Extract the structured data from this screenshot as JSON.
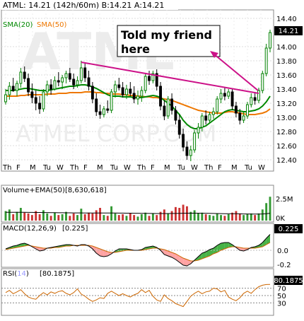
{
  "header": {
    "symbol_line": "ATML: 14.21 (142h/60m)  B:14.21  A:14.21",
    "sma20_label": "SMA(20)",
    "sma50_label": "SMA(50)",
    "last_price_badge": "14.21"
  },
  "watermark": {
    "big": "ATML",
    "corp": "ATMEL CORP.COM"
  },
  "annotation": {
    "line1": "Told my friend",
    "line2": "here"
  },
  "colors": {
    "bullish": "#008000",
    "bearish": "#000000",
    "sma20": "#008800",
    "sma50": "#ee7700",
    "trendline": "#cc1188",
    "volume_up": "#339933",
    "volume_down": "#cc3333",
    "macd_line": "#000000",
    "macd_signal": "#cc6600",
    "rsi_line": "#cc6600",
    "macd_hist_pos": "#33aa33",
    "macd_hist_neg": "#ff9999"
  },
  "price_axis": {
    "ticks": [
      "14.40",
      "14.00",
      "13.80",
      "13.60",
      "13.40",
      "13.20",
      "13.00",
      "12.80",
      "12.60",
      "12.40"
    ],
    "values": [
      14.4,
      14.0,
      13.8,
      13.6,
      13.4,
      13.2,
      13.0,
      12.8,
      12.6,
      12.4
    ]
  },
  "x_axis": {
    "labels": [
      "Th",
      "F",
      "M",
      "Tu",
      "W",
      "Th",
      "F",
      "M",
      "Tu",
      "W",
      "Th",
      "F",
      "M",
      "Tu",
      "W",
      "Th",
      "F",
      "M",
      "Tu",
      "W"
    ]
  },
  "volume_panel": {
    "label": "Volume+EMA(50)",
    "value": "[8,630,618]",
    "ticks": [
      "2.5M",
      "0K"
    ]
  },
  "macd_panel": {
    "label": "MACD(12,26,9)",
    "value": "[0.225]",
    "badge": "0.225",
    "ticks": [
      "0.0",
      "-0.2"
    ]
  },
  "rsi_panel": {
    "label": "RSI(",
    "label_period": "14",
    "label_close": ")",
    "value": "[80.1875]",
    "badge": "80.1875",
    "ticks": [
      "70",
      "50",
      "30"
    ]
  },
  "chart_data": {
    "type": "candlestick",
    "price_range": [
      12.3,
      14.5
    ],
    "candles": [
      [
        13.22,
        13.4,
        13.18,
        13.32
      ],
      [
        13.32,
        13.5,
        13.25,
        13.44
      ],
      [
        13.44,
        13.56,
        13.36,
        13.38
      ],
      [
        13.38,
        13.52,
        13.3,
        13.48
      ],
      [
        13.48,
        13.7,
        13.42,
        13.64
      ],
      [
        13.64,
        13.72,
        13.5,
        13.55
      ],
      [
        13.55,
        13.62,
        13.3,
        13.36
      ],
      [
        13.36,
        13.48,
        13.2,
        13.28
      ],
      [
        13.28,
        13.38,
        13.1,
        13.2
      ],
      [
        13.2,
        13.3,
        13.05,
        13.12
      ],
      [
        13.12,
        13.4,
        13.08,
        13.36
      ],
      [
        13.36,
        13.52,
        13.3,
        13.46
      ],
      [
        13.46,
        13.54,
        13.32,
        13.4
      ],
      [
        13.4,
        13.58,
        13.38,
        13.52
      ],
      [
        13.52,
        13.64,
        13.44,
        13.5
      ],
      [
        13.5,
        13.6,
        13.4,
        13.56
      ],
      [
        13.56,
        13.66,
        13.48,
        13.62
      ],
      [
        13.62,
        13.7,
        13.5,
        13.54
      ],
      [
        13.54,
        13.62,
        13.4,
        13.46
      ],
      [
        13.46,
        13.58,
        13.42,
        13.52
      ],
      [
        13.52,
        13.8,
        13.48,
        13.7
      ],
      [
        13.7,
        13.78,
        13.5,
        13.56
      ],
      [
        13.56,
        13.66,
        13.38,
        13.44
      ],
      [
        13.44,
        13.5,
        13.2,
        13.26
      ],
      [
        13.26,
        13.34,
        13.02,
        13.08
      ],
      [
        13.08,
        13.18,
        12.98,
        13.04
      ],
      [
        13.04,
        13.16,
        13.0,
        13.12
      ],
      [
        13.12,
        13.24,
        13.06,
        13.1
      ],
      [
        13.1,
        13.4,
        13.06,
        13.36
      ],
      [
        13.36,
        13.52,
        13.28,
        13.46
      ],
      [
        13.46,
        13.56,
        13.38,
        13.42
      ],
      [
        13.42,
        13.5,
        13.28,
        13.32
      ],
      [
        13.32,
        13.46,
        13.26,
        13.4
      ],
      [
        13.4,
        13.5,
        13.3,
        13.34
      ],
      [
        13.34,
        13.44,
        13.2,
        13.26
      ],
      [
        13.26,
        13.38,
        13.18,
        13.3
      ],
      [
        13.3,
        13.44,
        13.22,
        13.38
      ],
      [
        13.38,
        13.62,
        13.34,
        13.58
      ],
      [
        13.58,
        13.66,
        13.46,
        13.52
      ],
      [
        13.52,
        13.66,
        13.48,
        13.62
      ],
      [
        13.62,
        13.68,
        13.38,
        13.44
      ],
      [
        13.44,
        13.5,
        13.1,
        13.16
      ],
      [
        13.16,
        13.24,
        12.96,
        13.02
      ],
      [
        13.02,
        13.3,
        12.98,
        13.26
      ],
      [
        13.26,
        13.34,
        13.04,
        13.1
      ],
      [
        13.1,
        13.16,
        12.9,
        12.96
      ],
      [
        12.96,
        13.04,
        12.7,
        12.76
      ],
      [
        12.76,
        12.84,
        12.52,
        12.58
      ],
      [
        12.58,
        12.66,
        12.4,
        12.46
      ],
      [
        12.46,
        12.6,
        12.38,
        12.54
      ],
      [
        12.54,
        12.82,
        12.5,
        12.78
      ],
      [
        12.78,
        12.92,
        12.7,
        12.86
      ],
      [
        12.86,
        13.06,
        12.8,
        13.02
      ],
      [
        13.02,
        13.1,
        12.9,
        12.96
      ],
      [
        12.96,
        13.08,
        12.92,
        13.04
      ],
      [
        13.04,
        13.14,
        12.98,
        13.08
      ],
      [
        13.08,
        13.3,
        13.04,
        13.26
      ],
      [
        13.26,
        13.4,
        13.2,
        13.34
      ],
      [
        13.34,
        13.42,
        13.24,
        13.3
      ],
      [
        13.3,
        13.4,
        13.26,
        13.36
      ],
      [
        13.36,
        13.4,
        13.1,
        13.16
      ],
      [
        13.16,
        13.22,
        13.0,
        13.06
      ],
      [
        13.06,
        13.12,
        12.9,
        12.96
      ],
      [
        12.96,
        13.08,
        12.92,
        13.02
      ],
      [
        13.02,
        13.22,
        12.98,
        13.18
      ],
      [
        13.18,
        13.34,
        13.14,
        13.28
      ],
      [
        13.28,
        13.36,
        13.18,
        13.24
      ],
      [
        13.24,
        13.42,
        13.2,
        13.38
      ],
      [
        13.38,
        13.66,
        13.34,
        13.62
      ],
      [
        13.62,
        14.04,
        13.58,
        13.98
      ],
      [
        13.98,
        14.24,
        13.92,
        14.2
      ]
    ],
    "sma20": [
      13.38,
      13.38,
      13.38,
      13.39,
      13.4,
      13.41,
      13.41,
      13.4,
      13.39,
      13.38,
      13.38,
      13.38,
      13.39,
      13.4,
      13.41,
      13.42,
      13.43,
      13.44,
      13.44,
      13.45,
      13.46,
      13.46,
      13.45,
      13.43,
      13.41,
      13.38,
      13.35,
      13.32,
      13.3,
      13.3,
      13.3,
      13.29,
      13.29,
      13.29,
      13.28,
      13.28,
      13.28,
      13.29,
      13.3,
      13.31,
      13.3,
      13.28,
      13.24,
      13.2,
      13.16,
      13.1,
      13.04,
      12.96,
      12.9,
      12.86,
      12.84,
      12.84,
      12.86,
      12.88,
      12.92,
      12.96,
      13.0,
      13.04,
      13.08,
      13.1,
      13.11,
      13.1,
      13.09,
      13.08,
      13.08,
      13.09,
      13.1,
      13.12,
      13.16,
      13.22,
      13.3
    ],
    "sma50": [
      13.3,
      13.3,
      13.3,
      13.3,
      13.31,
      13.31,
      13.32,
      13.32,
      13.32,
      13.32,
      13.32,
      13.33,
      13.33,
      13.33,
      13.34,
      13.34,
      13.34,
      13.35,
      13.35,
      13.35,
      13.35,
      13.36,
      13.36,
      13.36,
      13.35,
      13.35,
      13.34,
      13.34,
      13.33,
      13.33,
      13.33,
      13.32,
      13.32,
      13.31,
      13.31,
      13.3,
      13.3,
      13.29,
      13.29,
      13.28,
      13.28,
      13.27,
      13.26,
      13.25,
      13.24,
      13.22,
      13.2,
      13.18,
      13.16,
      13.14,
      13.12,
      13.1,
      13.09,
      13.08,
      13.07,
      13.06,
      13.06,
      13.06,
      13.07,
      13.08,
      13.08,
      13.07,
      13.06,
      13.05,
      13.04,
      13.04,
      13.04,
      13.05,
      13.06,
      13.08,
      13.12
    ],
    "trendline": [
      [
        20,
        13.78
      ],
      [
        67,
        13.34
      ]
    ],
    "volume": [
      1.2,
      1.4,
      0.8,
      1.1,
      1.6,
      1.0,
      0.9,
      0.7,
      1.2,
      0.8,
      1.3,
      0.9,
      0.6,
      1.0,
      0.7,
      0.8,
      1.1,
      0.6,
      0.9,
      0.7,
      1.5,
      0.8,
      1.0,
      0.9,
      1.3,
      1.6,
      0.7,
      0.6,
      1.8,
      0.9,
      0.7,
      0.8,
      0.6,
      0.9,
      0.7,
      0.5,
      0.8,
      1.0,
      0.6,
      0.9,
      0.7,
      1.1,
      1.4,
      0.9,
      1.2,
      1.7,
      1.6,
      2.0,
      1.8,
      1.1,
      1.3,
      0.9,
      1.0,
      0.8,
      0.7,
      0.6,
      0.9,
      0.7,
      0.6,
      0.8,
      1.0,
      1.2,
      0.9,
      0.7,
      0.8,
      0.9,
      0.7,
      0.9,
      1.4,
      2.2,
      3.0
    ],
    "volume_ema": [
      1.05,
      1.05,
      1.05,
      1.04,
      1.04,
      1.04,
      1.03,
      1.03,
      1.02,
      1.02,
      1.01,
      1.01,
      1.0,
      1.0,
      0.99,
      0.99,
      0.98,
      0.98,
      0.97,
      0.97,
      0.97,
      0.96,
      0.96,
      0.96,
      0.96,
      0.96,
      0.96,
      0.95,
      0.95,
      0.95,
      0.94,
      0.94,
      0.93,
      0.93,
      0.92,
      0.92,
      0.91,
      0.91,
      0.9,
      0.9,
      0.89,
      0.89,
      0.89,
      0.89,
      0.9,
      0.9,
      0.91,
      0.92,
      0.93,
      0.93,
      0.93,
      0.93,
      0.92,
      0.92,
      0.91,
      0.9,
      0.89,
      0.88,
      0.87,
      0.87,
      0.86,
      0.86,
      0.85,
      0.84,
      0.84,
      0.83,
      0.82,
      0.82,
      0.84,
      0.87,
      0.92
    ],
    "macd_range": [
      -0.22,
      0.26
    ],
    "macd": [
      0.02,
      0.04,
      0.06,
      0.07,
      0.09,
      0.1,
      0.08,
      0.05,
      0.02,
      -0.01,
      0.0,
      0.03,
      0.04,
      0.05,
      0.06,
      0.07,
      0.08,
      0.08,
      0.07,
      0.06,
      0.08,
      0.08,
      0.06,
      0.02,
      -0.04,
      -0.08,
      -0.09,
      -0.08,
      -0.05,
      -0.01,
      0.02,
      0.02,
      0.02,
      0.01,
      0.0,
      0.0,
      0.01,
      0.04,
      0.05,
      0.06,
      0.04,
      0.0,
      -0.06,
      -0.08,
      -0.1,
      -0.13,
      -0.17,
      -0.21,
      -0.22,
      -0.19,
      -0.14,
      -0.09,
      -0.04,
      -0.02,
      0.01,
      0.03,
      0.07,
      0.1,
      0.11,
      0.11,
      0.08,
      0.04,
      0.0,
      -0.01,
      0.01,
      0.04,
      0.05,
      0.07,
      0.11,
      0.17,
      0.225
    ],
    "macd_signal": [
      0.01,
      0.02,
      0.03,
      0.04,
      0.05,
      0.06,
      0.07,
      0.06,
      0.05,
      0.04,
      0.03,
      0.03,
      0.03,
      0.04,
      0.04,
      0.05,
      0.06,
      0.06,
      0.07,
      0.07,
      0.07,
      0.07,
      0.07,
      0.06,
      0.04,
      0.02,
      0.0,
      -0.02,
      -0.03,
      -0.03,
      -0.02,
      -0.01,
      0.0,
      0.0,
      0.0,
      0.0,
      0.0,
      0.01,
      0.02,
      0.03,
      0.03,
      0.02,
      0.01,
      -0.01,
      -0.03,
      -0.05,
      -0.08,
      -0.11,
      -0.13,
      -0.15,
      -0.15,
      -0.14,
      -0.12,
      -0.1,
      -0.08,
      -0.05,
      -0.03,
      0.0,
      0.02,
      0.04,
      0.05,
      0.05,
      0.04,
      0.03,
      0.03,
      0.03,
      0.03,
      0.04,
      0.05,
      0.08,
      0.11
    ],
    "rsi": [
      58,
      64,
      55,
      60,
      66,
      55,
      46,
      42,
      40,
      50,
      58,
      52,
      60,
      56,
      61,
      63,
      56,
      52,
      58,
      68,
      54,
      48,
      40,
      34,
      38,
      44,
      42,
      56,
      62,
      56,
      50,
      55,
      50,
      46,
      52,
      56,
      66,
      58,
      64,
      48,
      38,
      34,
      52,
      42,
      36,
      28,
      24,
      20,
      34,
      48,
      56,
      62,
      55,
      60,
      62,
      70,
      68,
      60,
      64,
      46,
      40,
      36,
      44,
      56,
      62,
      56,
      66,
      74,
      78,
      80,
      80.1875
    ]
  }
}
